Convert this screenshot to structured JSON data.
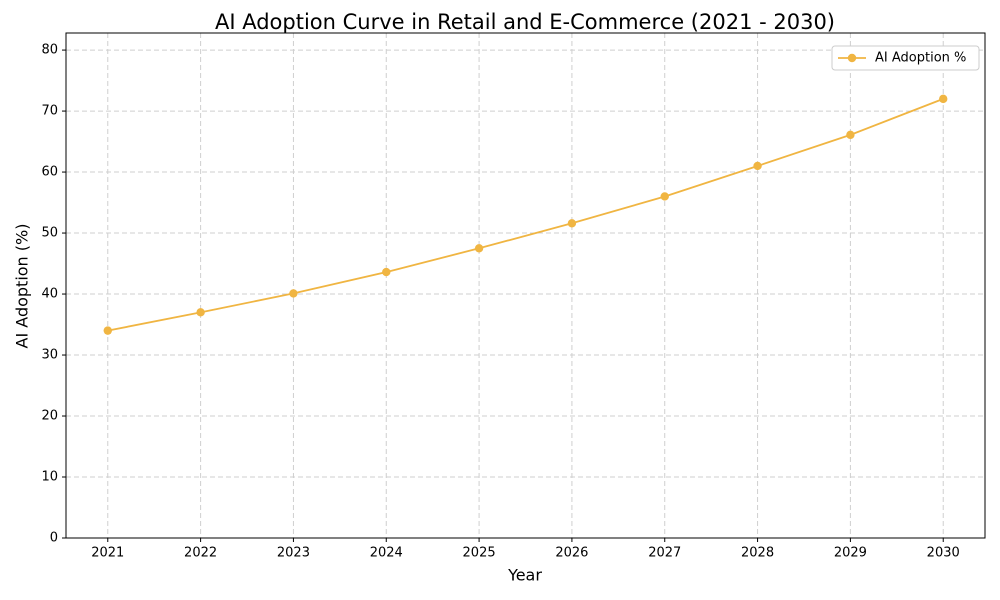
{
  "chart_data": {
    "type": "line",
    "title": "AI Adoption Curve in Retail and E-Commerce (2021 - 2030)",
    "x_label": "Year",
    "y_label": "AI Adoption (%)",
    "x": [
      2021,
      2022,
      2023,
      2024,
      2025,
      2026,
      2027,
      2028,
      2029,
      2030
    ],
    "series": [
      {
        "name": "AI Adoption %",
        "color": "#f0b542",
        "values": [
          34.0,
          37.0,
          40.1,
          43.6,
          47.5,
          51.6,
          56.0,
          61.0,
          66.1,
          72.0
        ]
      }
    ],
    "xlim": [
      2020.55,
      2030.45
    ],
    "xticks": [
      2021,
      2022,
      2023,
      2024,
      2025,
      2026,
      2027,
      2028,
      2029,
      2030
    ],
    "ylim": [
      0,
      82.8
    ],
    "yticks": [
      0,
      10,
      20,
      30,
      40,
      50,
      60,
      70,
      80
    ],
    "grid": true,
    "legend": "upper right"
  }
}
